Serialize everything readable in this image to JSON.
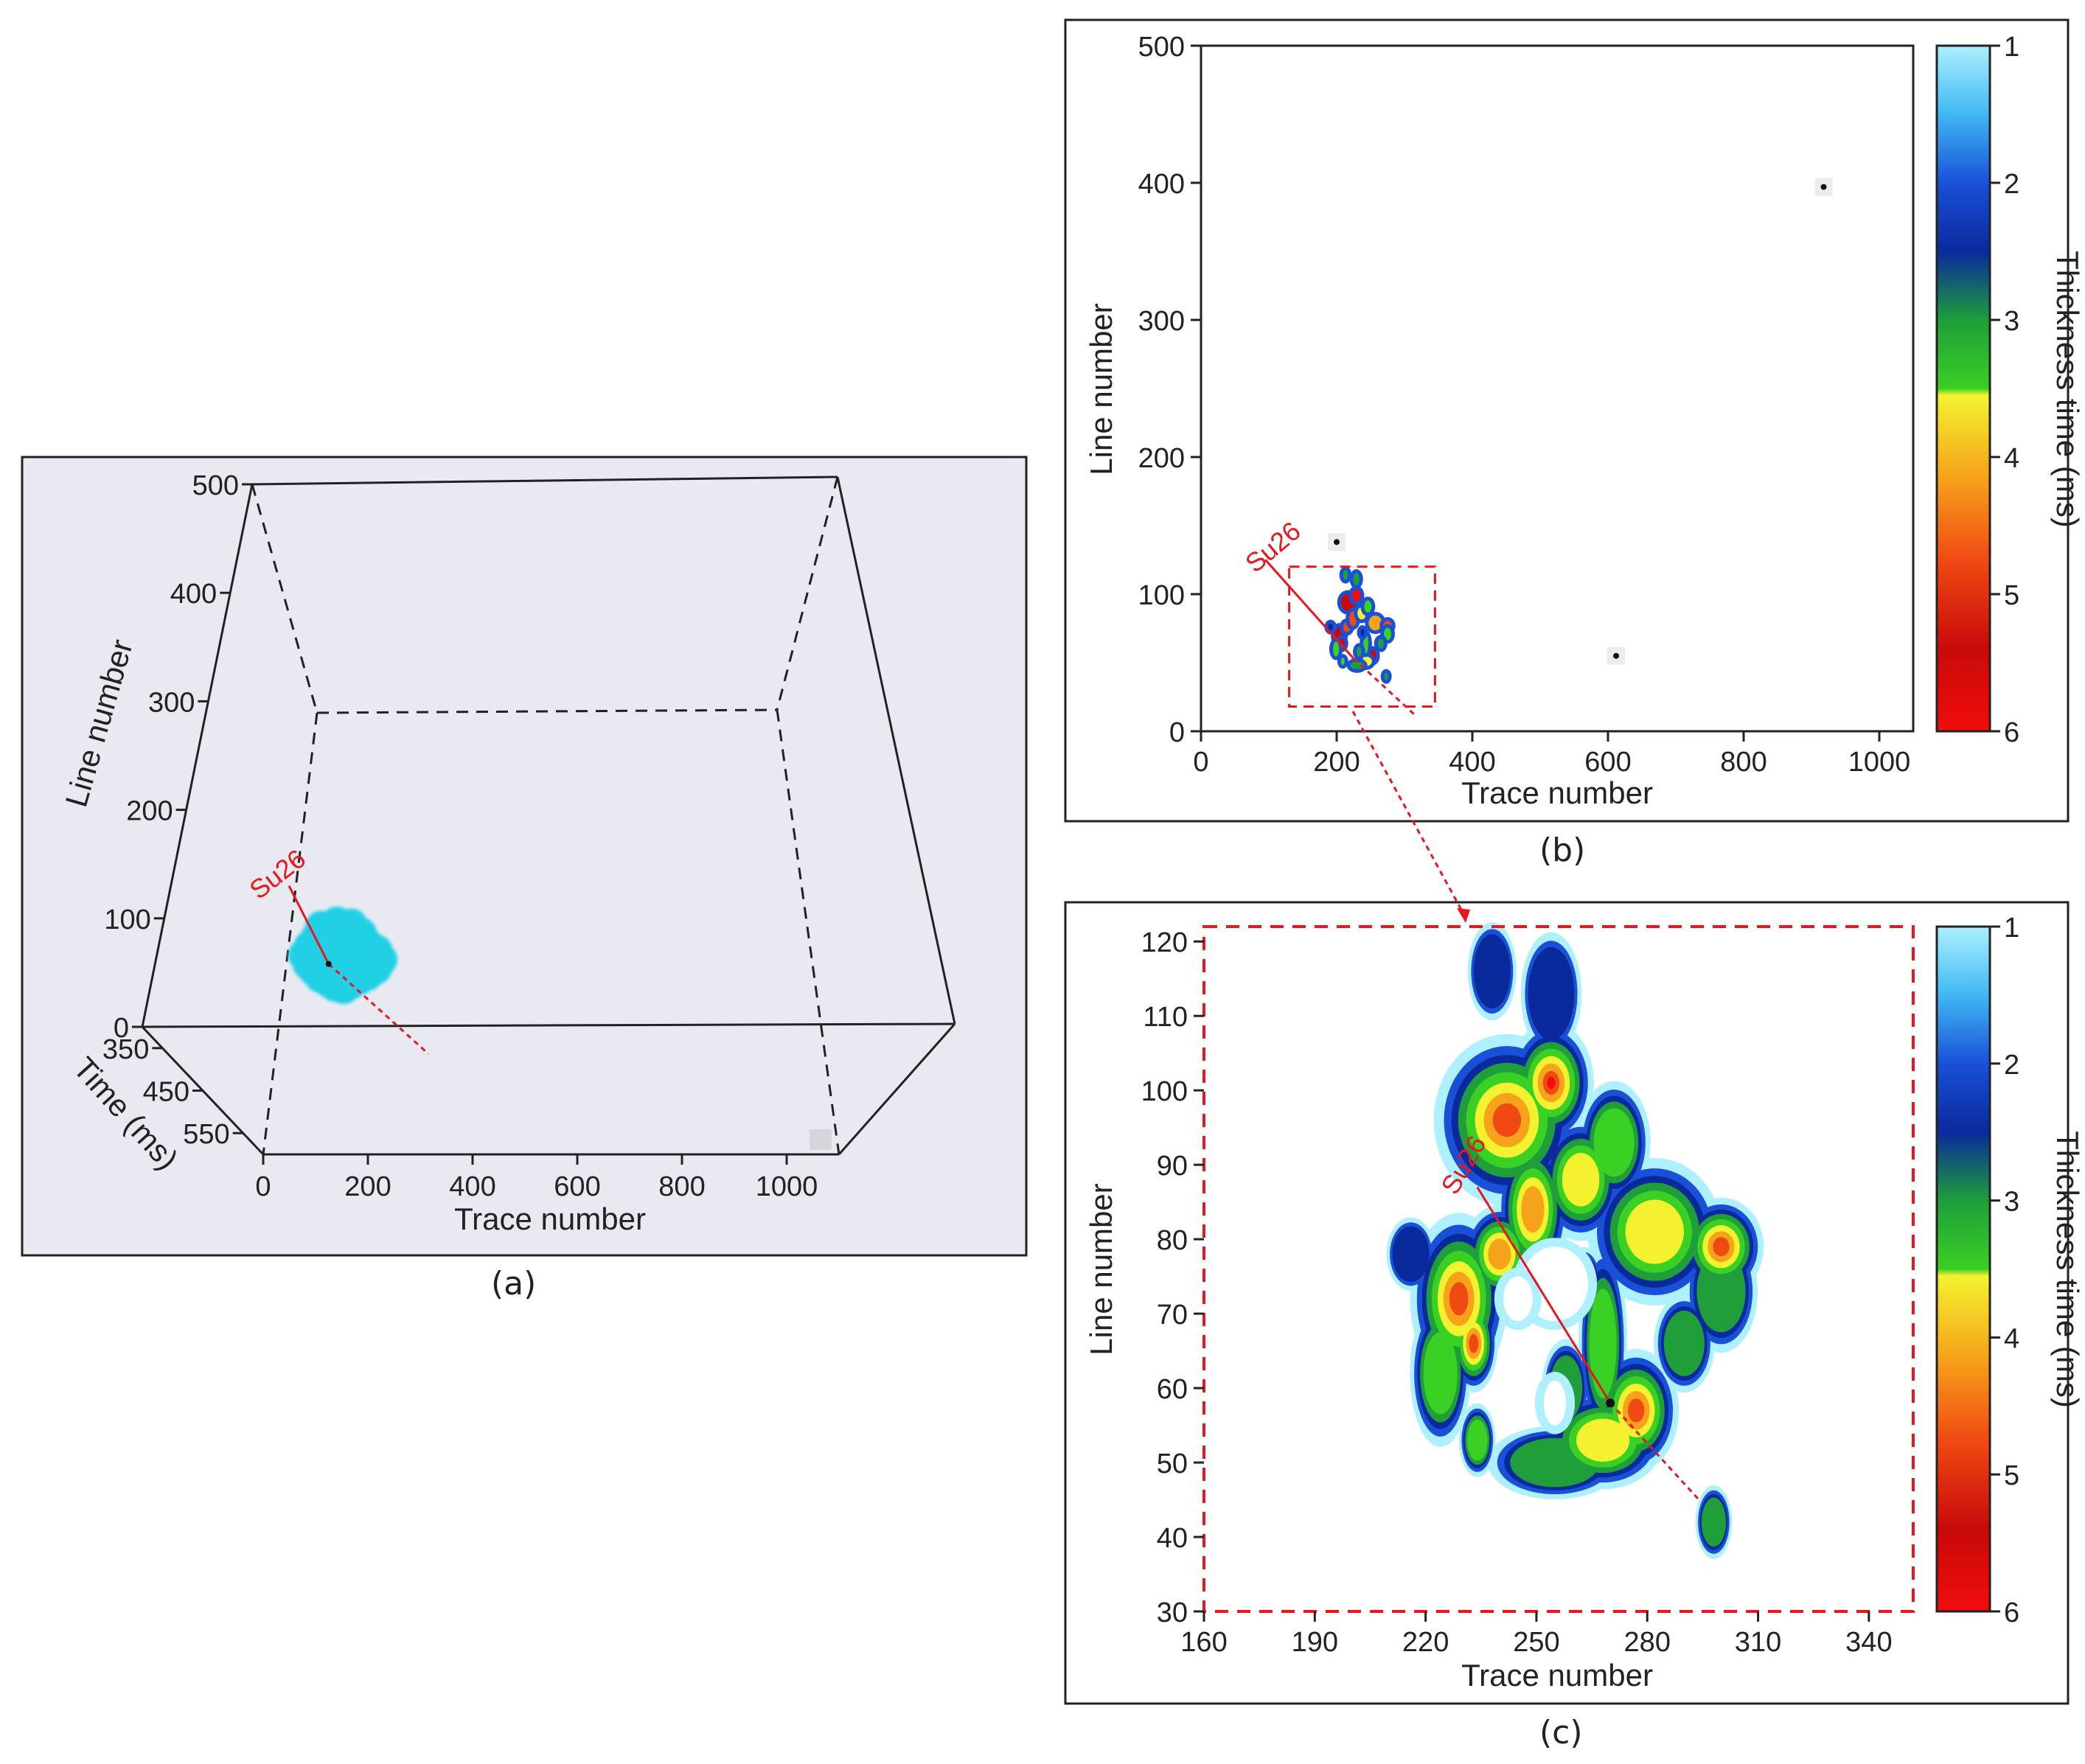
{
  "colors": {
    "well": "#e8161e",
    "panel_a_bg": "#e9eaf1",
    "panel_a_body": "#22d0e6",
    "frame": "#222222",
    "colormap": [
      "#aef0ff",
      "#3fb8f2",
      "#1a50d8",
      "#0a2a9c",
      "#1f9e3a",
      "#3ad024",
      "#f4f230",
      "#f6a21a",
      "#f04a14",
      "#c80a0a",
      "#f20c0c"
    ]
  },
  "well": {
    "name": "Su26",
    "trace": 270,
    "line": 58
  },
  "chart_data": [
    {
      "id": "a",
      "type": "scatter",
      "caption": "(a)",
      "view": "3d-perspective-box",
      "xlabel": "Trace number",
      "ylabel": "Line number",
      "zlabel": "Time (ms)",
      "x_ticks": [
        0,
        200,
        400,
        600,
        800,
        1000
      ],
      "y_ticks": [
        0,
        100,
        200,
        300,
        400,
        500
      ],
      "z_ticks": [
        350,
        450,
        550
      ],
      "xlim": [
        0,
        1100
      ],
      "ylim": [
        0,
        500
      ],
      "zlim": [
        300,
        600
      ],
      "body_color": "#22d0e6",
      "body_points": [
        [
          215,
          92
        ],
        [
          235,
          96
        ],
        [
          255,
          94
        ],
        [
          270,
          86
        ],
        [
          282,
          76
        ],
        [
          296,
          70
        ],
        [
          305,
          62
        ],
        [
          300,
          54
        ],
        [
          290,
          48
        ],
        [
          280,
          44
        ],
        [
          270,
          40
        ],
        [
          262,
          36
        ],
        [
          250,
          38
        ],
        [
          240,
          42
        ],
        [
          228,
          46
        ],
        [
          218,
          52
        ],
        [
          208,
          58
        ],
        [
          200,
          66
        ],
        [
          205,
          74
        ],
        [
          212,
          82
        ],
        [
          240,
          82
        ],
        [
          256,
          70
        ],
        [
          272,
          60
        ],
        [
          250,
          56
        ],
        [
          232,
          66
        ],
        [
          262,
          50
        ],
        [
          224,
          74
        ]
      ]
    },
    {
      "id": "b",
      "type": "heatmap",
      "caption": "(b)",
      "xlabel": "Trace number",
      "ylabel": "Line number",
      "x_ticks": [
        0,
        200,
        400,
        600,
        800,
        1000
      ],
      "y_ticks": [
        0,
        100,
        200,
        300,
        400,
        500
      ],
      "xlim": [
        0,
        1050
      ],
      "ylim": [
        0,
        500
      ],
      "colorbar": {
        "label": "Thickness time (ms)",
        "ticks": [
          1,
          2,
          3,
          4,
          5,
          6
        ],
        "range": [
          1,
          6
        ]
      },
      "zoom_box": {
        "x": [
          130,
          345
        ],
        "y": [
          18,
          120
        ]
      },
      "isolated_points": [
        [
          200,
          138
        ],
        [
          612,
          55
        ],
        [
          918,
          397
        ]
      ]
    },
    {
      "id": "c",
      "type": "heatmap",
      "caption": "(c)",
      "xlabel": "Trace number",
      "ylabel": "Line number",
      "x_ticks": [
        160,
        190,
        220,
        250,
        280,
        310,
        340
      ],
      "y_ticks": [
        30,
        40,
        50,
        60,
        70,
        80,
        90,
        100,
        110,
        120
      ],
      "xlim": [
        160,
        352
      ],
      "ylim": [
        30,
        122
      ],
      "colorbar": {
        "label": "Thickness time (ms)",
        "ticks": [
          1,
          2,
          3,
          4,
          5,
          6
        ],
        "range": [
          1,
          6
        ]
      },
      "blobs": [
        {
          "x": 242,
          "y": 96,
          "rx": 12,
          "ry": 7,
          "peak": 5.6
        },
        {
          "x": 254,
          "y": 101,
          "rx": 7,
          "ry": 5,
          "peak": 6.0
        },
        {
          "x": 229,
          "y": 72,
          "rx": 8,
          "ry": 7,
          "peak": 5.3
        },
        {
          "x": 233,
          "y": 66,
          "rx": 4,
          "ry": 4,
          "peak": 5.5
        },
        {
          "x": 240,
          "y": 78,
          "rx": 6,
          "ry": 4,
          "peak": 4.8
        },
        {
          "x": 249,
          "y": 84,
          "rx": 6,
          "ry": 6,
          "peak": 5.0
        },
        {
          "x": 262,
          "y": 88,
          "rx": 7,
          "ry": 5,
          "peak": 4.2
        },
        {
          "x": 282,
          "y": 81,
          "rx": 11,
          "ry": 6,
          "peak": 4.3
        },
        {
          "x": 300,
          "y": 79,
          "rx": 7,
          "ry": 4,
          "peak": 5.2
        },
        {
          "x": 277,
          "y": 57,
          "rx": 7,
          "ry": 5,
          "peak": 5.6
        },
        {
          "x": 268,
          "y": 53,
          "rx": 10,
          "ry": 4,
          "peak": 4.0
        },
        {
          "x": 268,
          "y": 66,
          "rx": 4,
          "ry": 8,
          "peak": 3.6
        },
        {
          "x": 255,
          "y": 50,
          "rx": 11,
          "ry": 3,
          "peak": 3.2
        },
        {
          "x": 254,
          "y": 113,
          "rx": 5,
          "ry": 5,
          "peak": 2.8
        },
        {
          "x": 238,
          "y": 116,
          "rx": 4,
          "ry": 4,
          "peak": 2.9
        },
        {
          "x": 271,
          "y": 93,
          "rx": 6,
          "ry": 5,
          "peak": 3.4
        },
        {
          "x": 224,
          "y": 62,
          "rx": 5,
          "ry": 6,
          "peak": 3.5
        },
        {
          "x": 234,
          "y": 53,
          "rx": 3,
          "ry": 3,
          "peak": 3.6
        },
        {
          "x": 258,
          "y": 60,
          "rx": 4,
          "ry": 4,
          "peak": 3.0
        },
        {
          "x": 298,
          "y": 42,
          "rx": 3,
          "ry": 3,
          "peak": 3.2
        },
        {
          "x": 300,
          "y": 73,
          "rx": 6,
          "ry": 5,
          "peak": 3.3
        },
        {
          "x": 290,
          "y": 66,
          "rx": 5,
          "ry": 4,
          "peak": 3.0
        },
        {
          "x": 263,
          "y": 74,
          "rx": 3,
          "ry": 3,
          "peak": 2.5
        },
        {
          "x": 216,
          "y": 78,
          "rx": 4,
          "ry": 3,
          "peak": 2.7
        }
      ],
      "hole": {
        "x": 255,
        "y": 74,
        "rx": 9,
        "ry": 5
      },
      "hole2": {
        "x": 245,
        "y": 72,
        "rx": 4,
        "ry": 3
      },
      "hole3": {
        "x": 255,
        "y": 58,
        "rx": 3,
        "ry": 3
      }
    }
  ]
}
